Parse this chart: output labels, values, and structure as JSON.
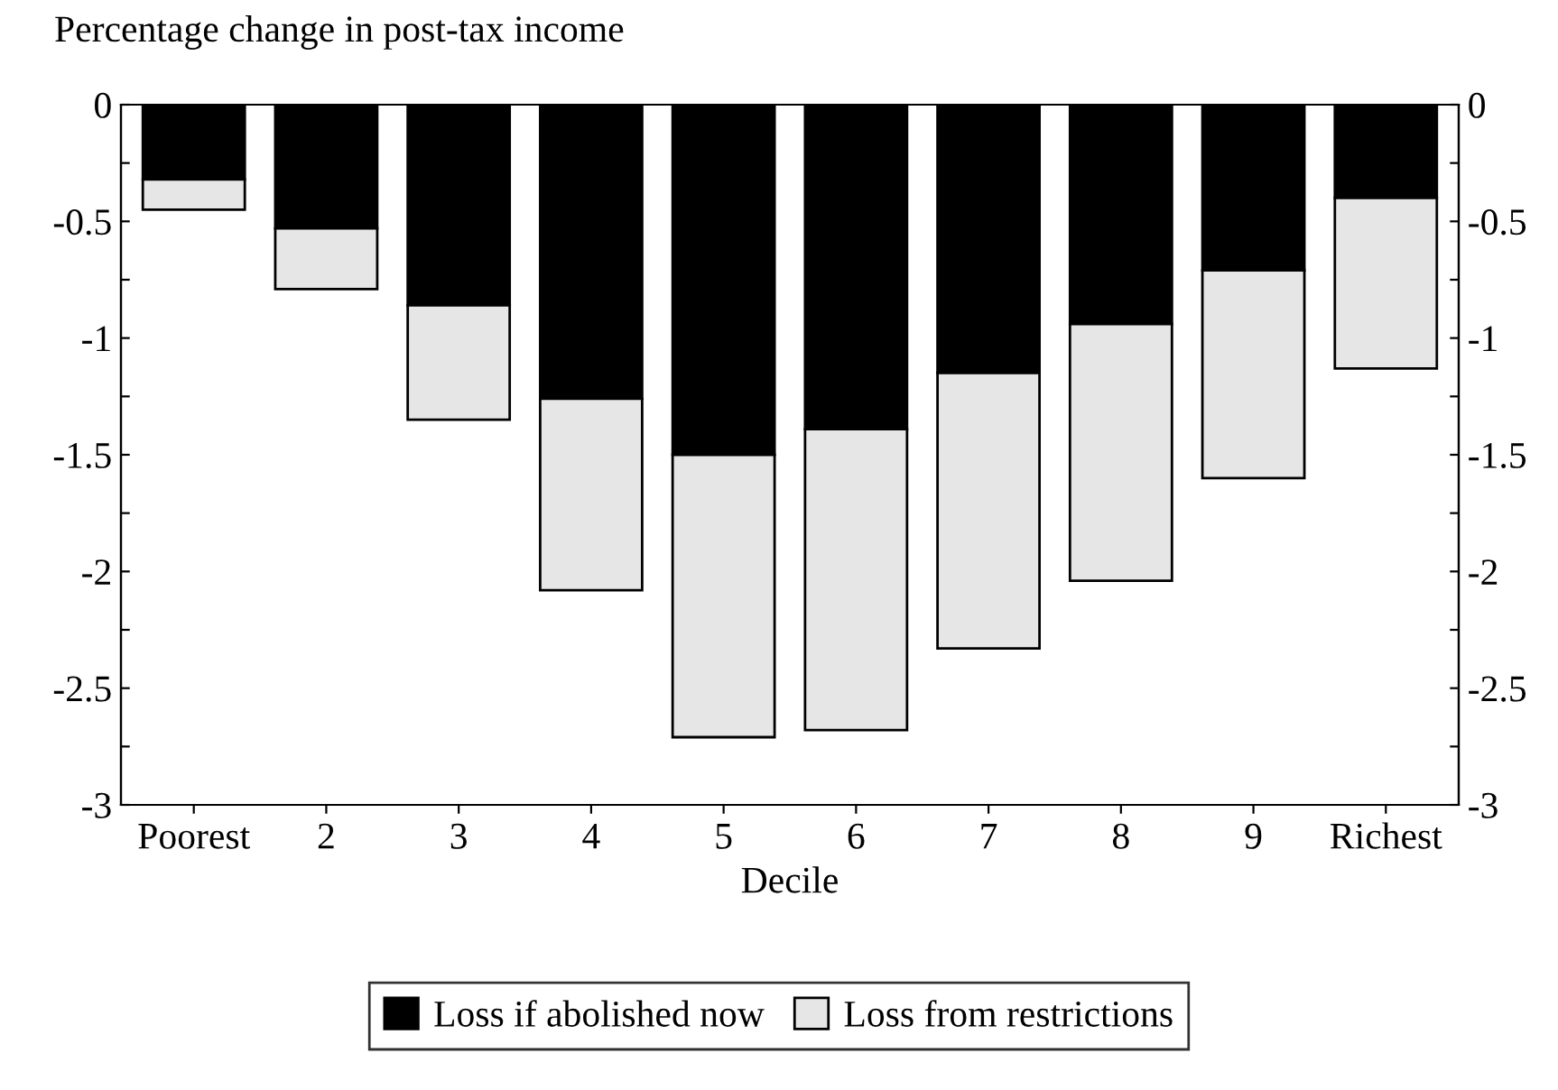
{
  "chart_data": {
    "type": "bar",
    "stacked": true,
    "title": "Percentage change in post-tax income",
    "xlabel": "Decile",
    "categories": [
      "Poorest",
      "2",
      "3",
      "4",
      "5",
      "6",
      "7",
      "8",
      "9",
      "Richest"
    ],
    "series": [
      {
        "name": "Loss if abolished now",
        "color": "#000000",
        "values": [
          -0.32,
          -0.53,
          -0.86,
          -1.26,
          -1.5,
          -1.39,
          -1.15,
          -0.94,
          -0.71,
          -0.4
        ]
      },
      {
        "name": "Loss from restrictions",
        "color": "#e6e6e6",
        "values": [
          -0.13,
          -0.26,
          -0.49,
          -0.82,
          -1.21,
          -1.29,
          -1.18,
          -1.1,
          -0.89,
          -0.73
        ]
      }
    ],
    "ylim": [
      -3,
      0
    ],
    "yticks": [
      0,
      {
        "value": -0.25,
        "label": null
      },
      -0.5,
      {
        "value": -0.75,
        "label": null
      },
      -1,
      {
        "value": -1.25,
        "label": null
      },
      -1.5,
      {
        "value": -1.75,
        "label": null
      },
      -2,
      {
        "value": -2.25,
        "label": null
      },
      -2.5,
      {
        "value": -2.75,
        "label": null
      },
      -3
    ],
    "y2lim": [
      -3,
      0
    ],
    "y2ticks": [
      0,
      {
        "value": -0.25,
        "label": null
      },
      -0.5,
      {
        "value": -0.75,
        "label": null
      },
      -1,
      {
        "value": -1.25,
        "label": null
      },
      -1.5,
      {
        "value": -1.75,
        "label": null
      },
      -2,
      {
        "value": -2.25,
        "label": null
      },
      -2.5,
      {
        "value": -2.75,
        "label": null
      },
      -3
    ],
    "legend": "bottom",
    "grid": false
  }
}
